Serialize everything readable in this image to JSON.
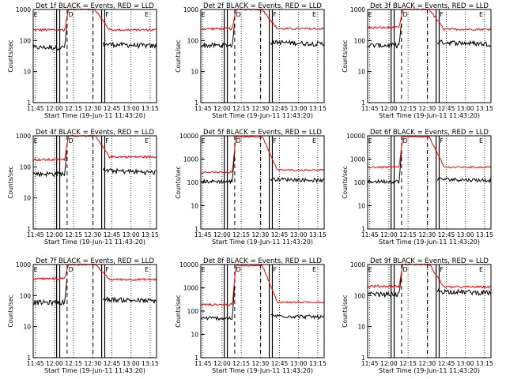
{
  "chart_data": {
    "type": "line",
    "x_tick_labels": [
      "11:45",
      "12:00",
      "12:15",
      "12:30",
      "12:45",
      "13:00",
      "13:15"
    ],
    "xlabel": "Start Time (19-Jun-11 11:43:20)",
    "ylabel": "Counts/sec",
    "y_scale": "log",
    "colors": {
      "events": "#000000",
      "lld": "#ff0000"
    },
    "event_markers": [
      "E",
      "D",
      "F",
      "E"
    ],
    "panels": [
      {
        "title": "Det 1f BLACK = Events, RED = LLD",
        "ylim": [
          1,
          1000
        ],
        "y_tick_labels": [
          "1",
          "10",
          "100",
          "1000"
        ],
        "events_base": 60,
        "lld_pre": 220,
        "lld_post": 220,
        "flare_peak": 1000
      },
      {
        "title": "Det 2f BLACK = Events, RED = LLD",
        "ylim": [
          1,
          1000
        ],
        "y_tick_labels": [
          "1",
          "10",
          "100",
          "1000"
        ],
        "events_base": 70,
        "lld_pre": 240,
        "lld_post": 240,
        "flare_peak": 1000
      },
      {
        "title": "Det 3f BLACK = Events, RED = LLD",
        "ylim": [
          1,
          1000
        ],
        "y_tick_labels": [
          "1",
          "10",
          "100",
          "1000"
        ],
        "events_base": 70,
        "lld_pre": 260,
        "lld_post": 230,
        "flare_peak": 1000
      },
      {
        "title": "Det 4f BLACK = Events, RED = LLD",
        "ylim": [
          1,
          1000
        ],
        "y_tick_labels": [
          "1",
          "10",
          "100",
          "1000"
        ],
        "events_base": 60,
        "lld_pre": 170,
        "lld_post": 210,
        "flare_peak": 1000
      },
      {
        "title": "Det 5f BLACK = Events, RED = LLD",
        "ylim": [
          1,
          10000
        ],
        "y_tick_labels": [
          "1",
          "10",
          "100",
          "1000",
          "10000"
        ],
        "events_base": 110,
        "lld_pre": 270,
        "lld_post": 340,
        "flare_peak": 9000
      },
      {
        "title": "Det 6f BLACK = Events, RED = LLD",
        "ylim": [
          1,
          10000
        ],
        "y_tick_labels": [
          "1",
          "10",
          "100",
          "1000",
          "10000"
        ],
        "events_base": 110,
        "lld_pre": 450,
        "lld_post": 450,
        "flare_peak": 9000
      },
      {
        "title": "Det 7f BLACK = Events, RED = LLD",
        "ylim": [
          1,
          1000
        ],
        "y_tick_labels": [
          "1",
          "10",
          "100",
          "1000"
        ],
        "events_base": 60,
        "lld_pre": 350,
        "lld_post": 330,
        "flare_peak": 1000
      },
      {
        "title": "Det 8f BLACK = Events, RED = LLD",
        "ylim": [
          1,
          10000
        ],
        "y_tick_labels": [
          "1",
          "10",
          "100",
          "1000",
          "10000"
        ],
        "events_base": 50,
        "lld_pre": 190,
        "lld_post": 240,
        "flare_peak": 9000
      },
      {
        "title": "Det 9f BLACK = Events, RED = LLD",
        "ylim": [
          1,
          1000
        ],
        "y_tick_labels": [
          "1",
          "10",
          "100",
          "1000"
        ],
        "events_base": 110,
        "lld_pre": 200,
        "lld_post": 190,
        "flare_peak": 1000
      }
    ]
  }
}
